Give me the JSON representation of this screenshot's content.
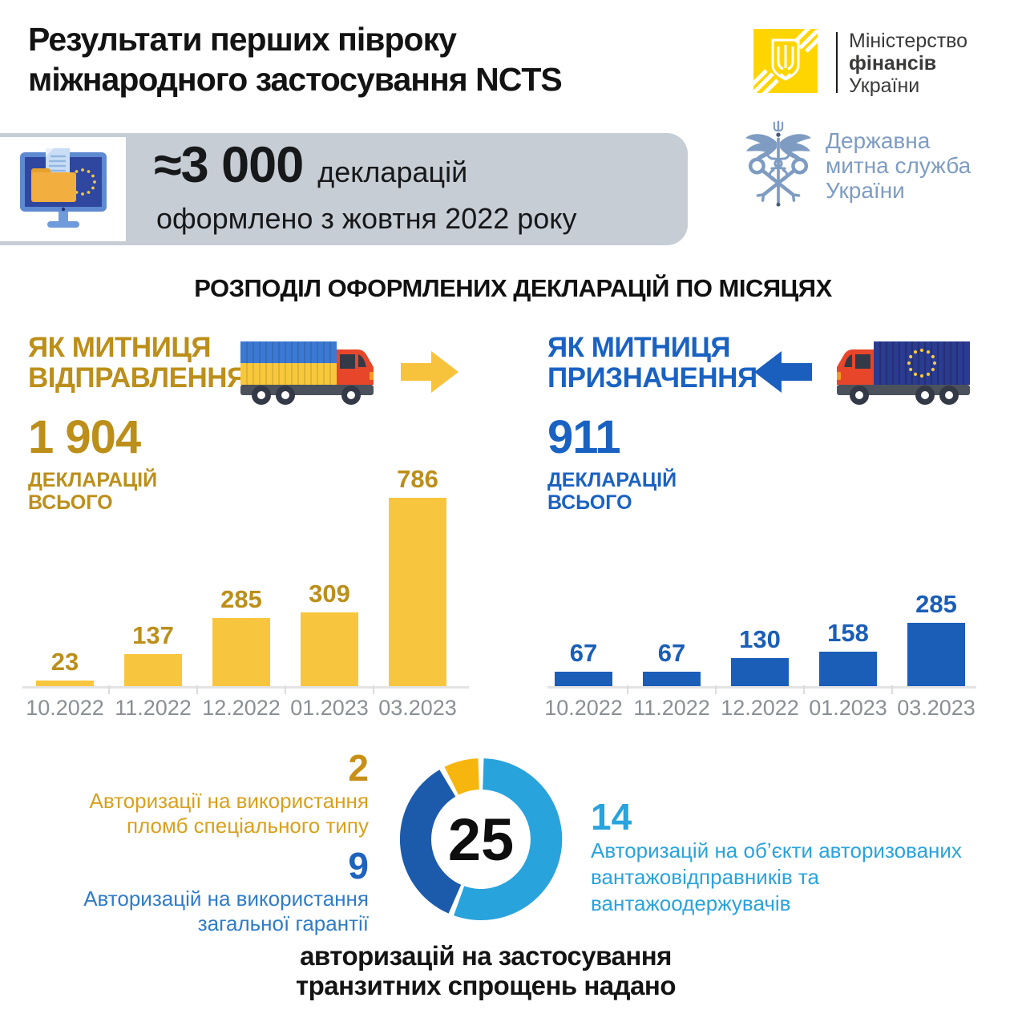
{
  "header": {
    "title_line1": "Результати перших півроку",
    "title_line2": "міжнародного застосування NCTS",
    "ministry_logo": {
      "line1": "Міністерство",
      "line2": "фінансів",
      "line3": "України",
      "brand_yellow": "#FFD500"
    },
    "customs_logo": {
      "line1": "Державна",
      "line2": "митна служба",
      "line3": "України",
      "color": "#7E9CC2"
    }
  },
  "summary_box": {
    "value": "≈3 000",
    "unit": "декларацій",
    "caption": "оформлено з жовтня 2022 року",
    "box_color": "#C7CDD5"
  },
  "section_title": "РОЗПОДІЛ ОФОРМЛЕНИХ ДЕКЛАРАЦІЙ ПО МІСЯЦЯХ",
  "chart_data": [
    {
      "type": "bar",
      "id": "customs-of-departure",
      "title_line1": "ЯК МИТНИЦЯ",
      "title_line2": "ВІДПРАВЛЕННЯ",
      "total": "1 904",
      "total_caption_line1": "ДЕКЛАРАЦІЙ",
      "total_caption_line2": "ВСЬОГО",
      "categories": [
        "10.2022",
        "11.2022",
        "12.2022",
        "01.2023",
        "03.2023"
      ],
      "values": [
        23,
        137,
        285,
        309,
        786
      ],
      "ylim": [
        0,
        786
      ],
      "grid": false,
      "bar_color": "#F8C63E",
      "value_label_color": "#BC8F1A",
      "accent_color": "#BC8F1A",
      "truck_icon": "ukraine-flag-truck-facing-right",
      "arrow_icon": "yellow-arrow-right"
    },
    {
      "type": "bar",
      "id": "customs-of-destination",
      "title_line1": "ЯК МИТНИЦЯ",
      "title_line2": "ПРИЗНАЧЕННЯ",
      "total": "911",
      "total_caption_line1": "ДЕКЛАРАЦІЙ",
      "total_caption_line2": "ВСЬОГО",
      "categories": [
        "10.2022",
        "11.2022",
        "12.2022",
        "01.2023",
        "03.2023"
      ],
      "values": [
        67,
        67,
        130,
        158,
        285
      ],
      "ylim": [
        0,
        285
      ],
      "grid": false,
      "bar_color": "#1A5EB8",
      "value_label_color": "#1A5EB8",
      "accent_color": "#1A62C2",
      "truck_icon": "eu-flag-truck-facing-left",
      "arrow_icon": "blue-arrow-left"
    },
    {
      "type": "pie",
      "id": "transit-simplification-authorizations",
      "style": "donut",
      "center_value": "25",
      "caption_line1": "авторизацій на застосування",
      "caption_line2": "транзитних спрощень надано",
      "legend_position": "around",
      "segments": [
        {
          "value": 14,
          "color": "#29A3DC",
          "number_color": "#29A3DC",
          "text_color": "#29A3DC",
          "label_number": "14",
          "label_line1": "Авторизацій на об’єкти авторизованих",
          "label_line2": "вантажовідправників та",
          "label_line3": "вантажоодержувачів"
        },
        {
          "value": 9,
          "color": "#1C5BAC",
          "number_color": "#1E63BE",
          "text_color": "#2F7CC7",
          "label_number": "9",
          "label_line1": "Авторизацій на використання",
          "label_line2": "загальної гарантії"
        },
        {
          "value": 2,
          "color": "#F7B60D",
          "number_color": "#C79018",
          "text_color": "#D8A01C",
          "label_number": "2",
          "label_line1": "Авторизації на використання",
          "label_line2": "пломб спеціального типу"
        }
      ]
    }
  ]
}
